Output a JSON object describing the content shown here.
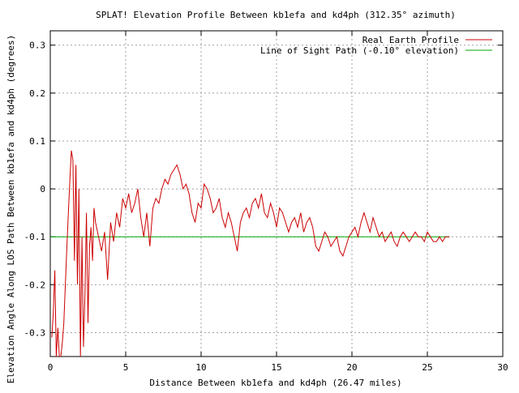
{
  "chart_data": {
    "type": "line",
    "title": "SPLAT! Elevation Profile Between kb1efa and kd4ph (312.35° azimuth)",
    "xlabel": "Distance Between kb1efa and kd4ph (26.47 miles)",
    "ylabel": "Elevation Angle Along LOS Path Between kb1efa and kd4ph (degrees)",
    "xlim": [
      0,
      30
    ],
    "ylim": [
      -0.35,
      0.33
    ],
    "x_ticks": [
      0,
      5,
      10,
      15,
      20,
      25,
      30
    ],
    "x_tick_labels": [
      "0",
      "5",
      "10",
      "15",
      "20",
      "25",
      "30"
    ],
    "y_ticks": [
      0.3,
      0.2,
      0.1,
      0,
      -0.1,
      -0.2,
      -0.3
    ],
    "y_tick_labels": [
      "0.3",
      "0.2",
      "0.1",
      "0",
      "-0.1",
      "-0.2",
      "-0.3"
    ],
    "grid": true,
    "legend_position": "top-right",
    "series": [
      {
        "name": "Real Earth Profile",
        "color": "#cc0000",
        "x": [
          0.1,
          0.2,
          0.3,
          0.4,
          0.5,
          0.6,
          0.7,
          0.8,
          0.9,
          1.0,
          1.1,
          1.2,
          1.3,
          1.4,
          1.5,
          1.6,
          1.7,
          1.8,
          1.9,
          2.0,
          2.1,
          2.2,
          2.3,
          2.4,
          2.5,
          2.6,
          2.7,
          2.8,
          2.9,
          3.0,
          3.2,
          3.4,
          3.6,
          3.8,
          4.0,
          4.2,
          4.4,
          4.6,
          4.8,
          5.0,
          5.2,
          5.4,
          5.6,
          5.8,
          6.0,
          6.2,
          6.4,
          6.6,
          6.8,
          7.0,
          7.2,
          7.4,
          7.6,
          7.8,
          8.0,
          8.2,
          8.4,
          8.6,
          8.8,
          9.0,
          9.2,
          9.4,
          9.6,
          9.8,
          10.0,
          10.2,
          10.4,
          10.6,
          10.8,
          11.0,
          11.2,
          11.4,
          11.6,
          11.8,
          12.0,
          12.2,
          12.4,
          12.6,
          12.8,
          13.0,
          13.2,
          13.4,
          13.6,
          13.8,
          14.0,
          14.2,
          14.4,
          14.6,
          14.8,
          15.0,
          15.2,
          15.4,
          15.6,
          15.8,
          16.0,
          16.2,
          16.4,
          16.6,
          16.8,
          17.0,
          17.2,
          17.4,
          17.6,
          17.8,
          18.0,
          18.2,
          18.4,
          18.6,
          18.8,
          19.0,
          19.2,
          19.4,
          19.6,
          19.8,
          20.0,
          20.2,
          20.4,
          20.6,
          20.8,
          21.0,
          21.2,
          21.4,
          21.6,
          21.8,
          22.0,
          22.2,
          22.4,
          22.6,
          22.8,
          23.0,
          23.2,
          23.4,
          23.6,
          23.8,
          24.0,
          24.2,
          24.4,
          24.6,
          24.8,
          25.0,
          25.2,
          25.4,
          25.6,
          25.8,
          26.0,
          26.2,
          26.47
        ],
        "y": [
          -0.31,
          -0.26,
          -0.17,
          -0.35,
          -0.29,
          -0.35,
          -0.35,
          -0.32,
          -0.28,
          -0.2,
          -0.12,
          -0.05,
          0.02,
          0.08,
          0.06,
          -0.15,
          0.05,
          -0.2,
          0.0,
          -0.35,
          -0.1,
          -0.33,
          -0.22,
          -0.05,
          -0.28,
          -0.12,
          -0.08,
          -0.15,
          -0.04,
          -0.07,
          -0.1,
          -0.13,
          -0.09,
          -0.19,
          -0.07,
          -0.11,
          -0.05,
          -0.08,
          -0.02,
          -0.04,
          -0.01,
          -0.05,
          -0.03,
          0.0,
          -0.06,
          -0.1,
          -0.05,
          -0.12,
          -0.04,
          -0.02,
          -0.03,
          0.0,
          0.02,
          0.01,
          0.03,
          0.04,
          0.05,
          0.03,
          0.0,
          0.01,
          -0.01,
          -0.05,
          -0.07,
          -0.03,
          -0.04,
          0.01,
          0.0,
          -0.02,
          -0.05,
          -0.04,
          -0.02,
          -0.06,
          -0.08,
          -0.05,
          -0.07,
          -0.1,
          -0.13,
          -0.07,
          -0.05,
          -0.04,
          -0.06,
          -0.03,
          -0.02,
          -0.04,
          -0.01,
          -0.05,
          -0.06,
          -0.03,
          -0.05,
          -0.08,
          -0.04,
          -0.05,
          -0.07,
          -0.09,
          -0.07,
          -0.06,
          -0.08,
          -0.05,
          -0.09,
          -0.07,
          -0.06,
          -0.08,
          -0.12,
          -0.13,
          -0.11,
          -0.09,
          -0.1,
          -0.12,
          -0.11,
          -0.1,
          -0.13,
          -0.14,
          -0.12,
          -0.1,
          -0.09,
          -0.08,
          -0.1,
          -0.07,
          -0.05,
          -0.07,
          -0.09,
          -0.06,
          -0.08,
          -0.1,
          -0.09,
          -0.11,
          -0.1,
          -0.09,
          -0.11,
          -0.12,
          -0.1,
          -0.09,
          -0.1,
          -0.11,
          -0.1,
          -0.09,
          -0.1,
          -0.1,
          -0.11,
          -0.09,
          -0.1,
          -0.11,
          -0.11,
          -0.1,
          -0.11,
          -0.1,
          -0.1
        ]
      },
      {
        "name": "Line of Sight Path (-0.10° elevation)",
        "color": "#00aa00",
        "x": [
          0,
          26.47
        ],
        "y": [
          -0.1,
          -0.1
        ]
      }
    ]
  }
}
